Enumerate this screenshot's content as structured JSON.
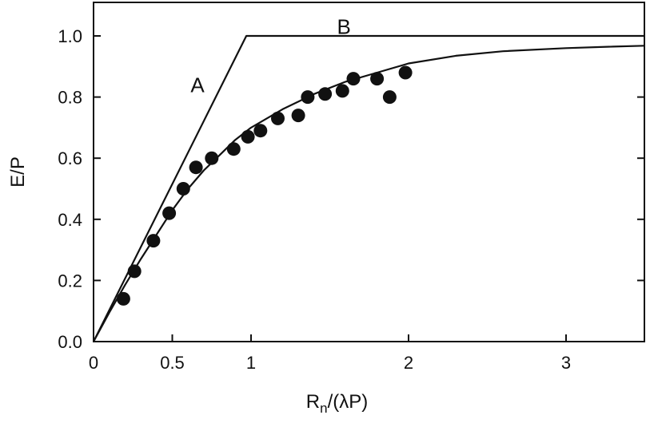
{
  "chart_data": {
    "type": "scatter",
    "xlabel": {
      "main": "R",
      "sub": "n",
      "rest": "/(λP)"
    },
    "ylabel": "E/P",
    "xlim": [
      0,
      3.65
    ],
    "ylim": [
      0,
      1.1
    ],
    "xticks": [
      {
        "value": 0,
        "label": "0"
      },
      {
        "value": 0.5,
        "label": "0.5"
      },
      {
        "value": 1,
        "label": "1"
      },
      {
        "value": 2,
        "label": "2"
      },
      {
        "value": 3,
        "label": "3"
      }
    ],
    "yticks": [
      {
        "value": 0,
        "label": "0.0"
      },
      {
        "value": 0.2,
        "label": "0.2"
      },
      {
        "value": 0.4,
        "label": "0.4"
      },
      {
        "value": 0.6,
        "label": "0.6"
      },
      {
        "value": 0.8,
        "label": "0.8"
      },
      {
        "value": 1.0,
        "label": "1.0"
      }
    ],
    "grid": false,
    "series": [
      {
        "kind": "points",
        "x": [
          0.19,
          0.26,
          0.38,
          0.48,
          0.57,
          0.65,
          0.75,
          0.89,
          0.98,
          1.06,
          1.17,
          1.3,
          1.36,
          1.47,
          1.58,
          1.65,
          1.8,
          1.88,
          1.98
        ],
        "y": [
          0.14,
          0.23,
          0.33,
          0.42,
          0.5,
          0.57,
          0.6,
          0.63,
          0.67,
          0.69,
          0.73,
          0.74,
          0.8,
          0.81,
          0.82,
          0.86,
          0.86,
          0.8,
          0.88
        ]
      },
      {
        "kind": "line",
        "x": [
          0,
          0.97,
          3.65
        ],
        "y": [
          0,
          1.0,
          1.0
        ]
      },
      {
        "kind": "line",
        "x": [
          0,
          0.1,
          0.2,
          0.3,
          0.4,
          0.5,
          0.6,
          0.7,
          0.8,
          0.9,
          1.0,
          1.2,
          1.4,
          1.6,
          1.8,
          2.0,
          2.3,
          2.6,
          3.0,
          3.3,
          3.65
        ],
        "y": [
          0,
          0.095,
          0.185,
          0.27,
          0.35,
          0.43,
          0.5,
          0.56,
          0.61,
          0.66,
          0.7,
          0.76,
          0.81,
          0.85,
          0.88,
          0.91,
          0.935,
          0.95,
          0.96,
          0.965,
          0.97
        ]
      }
    ],
    "annotations": [
      {
        "text": "A",
        "x": 0.66,
        "y": 0.84
      },
      {
        "text": "B",
        "x": 1.59,
        "y": 1.03
      }
    ]
  },
  "colors": {
    "ink": "#111111",
    "background": "#ffffff"
  }
}
